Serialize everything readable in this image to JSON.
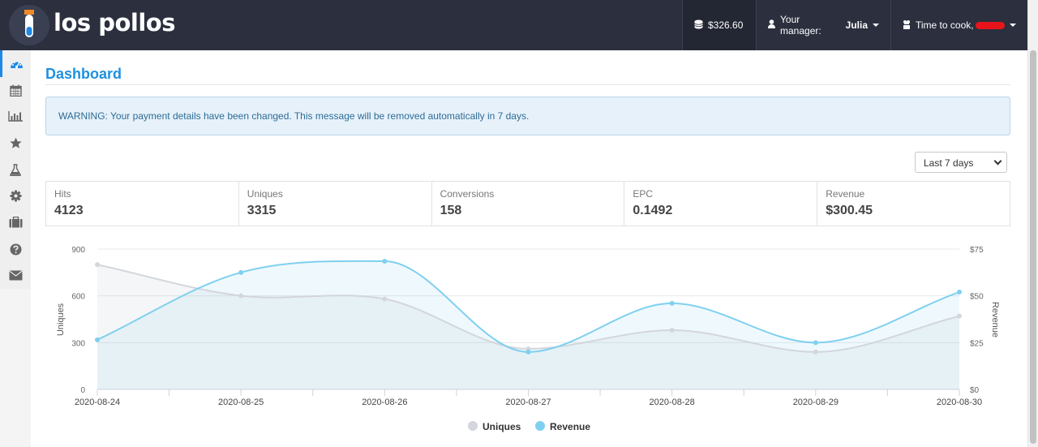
{
  "header": {
    "logo_text": "los pollos",
    "balance": "$326.60",
    "manager_label": "Your manager:",
    "manager_name": "Julia",
    "user_label": "Time to cook,"
  },
  "sidebar": {
    "items": [
      {
        "icon": "dashboard-icon",
        "active": true
      },
      {
        "icon": "calendar-icon"
      },
      {
        "icon": "bar-chart-icon"
      },
      {
        "icon": "star-icon"
      },
      {
        "icon": "flask-icon"
      },
      {
        "icon": "gear-icon"
      },
      {
        "icon": "briefcase-icon"
      },
      {
        "icon": "help-icon"
      },
      {
        "icon": "envelope-icon"
      }
    ]
  },
  "main": {
    "title": "Dashboard",
    "alert": "WARNING: Your payment details have been changed. This message will be removed automatically in 7 days.",
    "range": "Last 7 days",
    "stats": [
      {
        "label": "Hits",
        "value": "4123"
      },
      {
        "label": "Uniques",
        "value": "3315"
      },
      {
        "label": "Conversions",
        "value": "158"
      },
      {
        "label": "EPC",
        "value": "0.1492"
      },
      {
        "label": "Revenue",
        "value": "$300.45"
      }
    ]
  },
  "chart_data": {
    "type": "line",
    "x": [
      "2020-08-24",
      "2020-08-25",
      "2020-08-26",
      "2020-08-27",
      "2020-08-28",
      "2020-08-29",
      "2020-08-30"
    ],
    "series": [
      {
        "name": "Uniques",
        "axis": "left",
        "values": [
          800,
          600,
          580,
          260,
          380,
          240,
          470
        ],
        "color": "#d3d6dc"
      },
      {
        "name": "Revenue",
        "axis": "right",
        "values": [
          26.5,
          62.5,
          68.5,
          20.0,
          46.0,
          25.0,
          52.0
        ],
        "color": "#7fd0f0"
      }
    ],
    "ylabel": "Uniques",
    "y2label": "Revenue",
    "ylim": [
      0,
      900
    ],
    "y2lim": [
      0,
      75
    ],
    "yticks": [
      "0",
      "300",
      "600",
      "900"
    ],
    "y2ticks": [
      "$0",
      "$25",
      "$50",
      "$75"
    ],
    "legend": "bottom",
    "grid": true
  }
}
